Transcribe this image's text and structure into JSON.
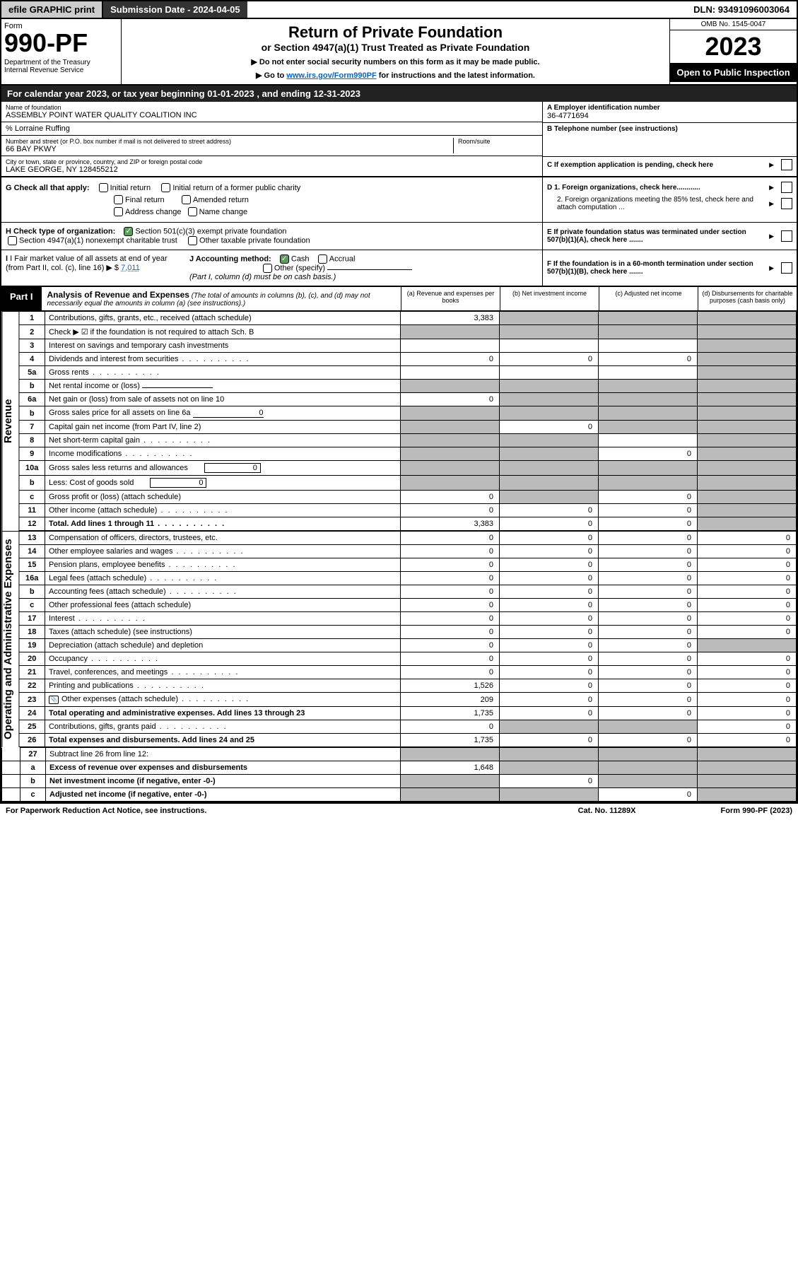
{
  "topbar": {
    "efile": "efile GRAPHIC print",
    "subdate_lbl": "Submission Date - 2024-04-05",
    "dln": "DLN: 93491096003064"
  },
  "header": {
    "form": "Form",
    "num": "990-PF",
    "dept": "Department of the Treasury\nInternal Revenue Service",
    "title": "Return of Private Foundation",
    "sub1": "or Section 4947(a)(1) Trust Treated as Private Foundation",
    "sub2a": "▶ Do not enter social security numbers on this form as it may be made public.",
    "sub2b": "▶ Go to ",
    "link": "www.irs.gov/Form990PF",
    "sub2c": " for instructions and the latest information.",
    "omb": "OMB No. 1545-0047",
    "year": "2023",
    "open": "Open to Public Inspection"
  },
  "calyear": "For calendar year 2023, or tax year beginning 01-01-2023                          , and ending 12-31-2023",
  "info": {
    "name_lbl": "Name of foundation",
    "name": "ASSEMBLY POINT WATER QUALITY COALITION INC",
    "co": "% Lorraine Ruffing",
    "addr_lbl": "Number and street (or P.O. box number if mail is not delivered to street address)",
    "room_lbl": "Room/suite",
    "addr": "66 BAY PKWY",
    "city_lbl": "City or town, state or province, country, and ZIP or foreign postal code",
    "city": "LAKE GEORGE, NY  128455212",
    "a_lbl": "A Employer identification number",
    "a": "36-4771694",
    "b_lbl": "B Telephone number (see instructions)",
    "b": "",
    "c_lbl": "C If exemption application is pending, check here",
    "d1": "D 1. Foreign organizations, check here............",
    "d2": "2. Foreign organizations meeting the 85% test, check here and attach computation ...",
    "e": "E  If private foundation status was terminated under section 507(b)(1)(A), check here .......",
    "f": "F  If the foundation is in a 60-month termination under section 507(b)(1)(B), check here ......."
  },
  "g": {
    "lbl": "G Check all that apply:",
    "o1": "Initial return",
    "o2": "Final return",
    "o3": "Address change",
    "o4": "Initial return of a former public charity",
    "o5": "Amended return",
    "o6": "Name change"
  },
  "h": {
    "lbl": "H Check type of organization:",
    "o1": "Section 501(c)(3) exempt private foundation",
    "o2": "Section 4947(a)(1) nonexempt charitable trust",
    "o3": "Other taxable private foundation"
  },
  "i": {
    "lbl": "I Fair market value of all assets at end of year (from Part II, col. (c), line 16) ▶ $",
    "val": "7,011"
  },
  "j": {
    "lbl": "J Accounting method:",
    "o1": "Cash",
    "o2": "Accrual",
    "o3": "Other (specify)",
    "note": "(Part I, column (d) must be on cash basis.)"
  },
  "part1": {
    "tag": "Part I",
    "title": "Analysis of Revenue and Expenses",
    "note": "(The total of amounts in columns (b), (c), and (d) may not necessarily equal the amounts in column (a) (see instructions).)",
    "ca": "(a)    Revenue and expenses per books",
    "cb": "(b)    Net investment income",
    "cc": "(c)   Adjusted net income",
    "cd": "(d)   Disbursements for charitable purposes (cash basis only)"
  },
  "rev_label": "Revenue",
  "exp_label": "Operating and Administrative Expenses",
  "rows": [
    {
      "n": "1",
      "t": "Contributions, gifts, grants, etc., received (attach schedule)",
      "a": "3,383",
      "bgrey": 1,
      "cgrey": 1,
      "dgrey": 1
    },
    {
      "n": "2",
      "t": "Check ▶  ☑  if the foundation is not required to attach Sch. B",
      "a": "",
      "bgrey": 1,
      "cgrey": 1,
      "dgrey": 1,
      "agrey": 1,
      "bold_not": 1
    },
    {
      "n": "3",
      "t": "Interest on savings and temporary cash investments",
      "a": "",
      "b": "",
      "c": "",
      "dgrey": 1
    },
    {
      "n": "4",
      "t": "Dividends and interest from securities",
      "a": "0",
      "b": "0",
      "c": "0",
      "dgrey": 1
    },
    {
      "n": "5a",
      "t": "Gross rents",
      "a": "",
      "b": "",
      "c": "",
      "dgrey": 1
    },
    {
      "n": "b",
      "t": "Net rental income or (loss)",
      "underline": 1,
      "agrey": 1,
      "bgrey": 1,
      "cgrey": 1,
      "dgrey": 1
    },
    {
      "n": "6a",
      "t": "Net gain or (loss) from sale of assets not on line 10",
      "a": "0",
      "bgrey": 1,
      "cgrey": 1,
      "dgrey": 1
    },
    {
      "n": "b",
      "t": "Gross sales price for all assets on line 6a",
      "underline": 1,
      "uval": "0",
      "agrey": 1,
      "bgrey": 1,
      "cgrey": 1,
      "dgrey": 1
    },
    {
      "n": "7",
      "t": "Capital gain net income (from Part IV, line 2)",
      "agrey": 1,
      "b": "0",
      "cgrey": 1,
      "dgrey": 1
    },
    {
      "n": "8",
      "t": "Net short-term capital gain",
      "agrey": 1,
      "bgrey": 1,
      "c": "",
      "dgrey": 1
    },
    {
      "n": "9",
      "t": "Income modifications",
      "agrey": 1,
      "bgrey": 1,
      "c": "0",
      "dgrey": 1
    },
    {
      "n": "10a",
      "t": "Gross sales less returns and allowances",
      "box": 1,
      "bval": "0",
      "agrey": 1,
      "bgrey": 1,
      "cgrey": 1,
      "dgrey": 1
    },
    {
      "n": "b",
      "t": "Less: Cost of goods sold",
      "box": 1,
      "bval": "0",
      "agrey": 1,
      "bgrey": 1,
      "cgrey": 1,
      "dgrey": 1
    },
    {
      "n": "c",
      "t": "Gross profit or (loss) (attach schedule)",
      "a": "0",
      "bgrey": 1,
      "c": "0",
      "dgrey": 1
    },
    {
      "n": "11",
      "t": "Other income (attach schedule)",
      "a": "0",
      "b": "0",
      "c": "0",
      "dgrey": 1
    },
    {
      "n": "12",
      "t": "Total. Add lines 1 through 11",
      "a": "3,383",
      "b": "0",
      "c": "0",
      "dgrey": 1,
      "bold": 1
    }
  ],
  "exp_rows": [
    {
      "n": "13",
      "t": "Compensation of officers, directors, trustees, etc.",
      "a": "0",
      "b": "0",
      "c": "0",
      "d": "0"
    },
    {
      "n": "14",
      "t": "Other employee salaries and wages",
      "a": "0",
      "b": "0",
      "c": "0",
      "d": "0"
    },
    {
      "n": "15",
      "t": "Pension plans, employee benefits",
      "a": "0",
      "b": "0",
      "c": "0",
      "d": "0"
    },
    {
      "n": "16a",
      "t": "Legal fees (attach schedule)",
      "a": "0",
      "b": "0",
      "c": "0",
      "d": "0"
    },
    {
      "n": "b",
      "t": "Accounting fees (attach schedule)",
      "a": "0",
      "b": "0",
      "c": "0",
      "d": "0"
    },
    {
      "n": "c",
      "t": "Other professional fees (attach schedule)",
      "a": "0",
      "b": "0",
      "c": "0",
      "d": "0"
    },
    {
      "n": "17",
      "t": "Interest",
      "a": "0",
      "b": "0",
      "c": "0",
      "d": "0"
    },
    {
      "n": "18",
      "t": "Taxes (attach schedule) (see instructions)",
      "a": "0",
      "b": "0",
      "c": "0",
      "d": "0"
    },
    {
      "n": "19",
      "t": "Depreciation (attach schedule) and depletion",
      "a": "0",
      "b": "0",
      "c": "0",
      "dgrey": 1
    },
    {
      "n": "20",
      "t": "Occupancy",
      "a": "0",
      "b": "0",
      "c": "0",
      "d": "0"
    },
    {
      "n": "21",
      "t": "Travel, conferences, and meetings",
      "a": "0",
      "b": "0",
      "c": "0",
      "d": "0"
    },
    {
      "n": "22",
      "t": "Printing and publications",
      "a": "1,526",
      "b": "0",
      "c": "0",
      "d": "0"
    },
    {
      "n": "23",
      "t": "Other expenses (attach schedule)",
      "icon": 1,
      "a": "209",
      "b": "0",
      "c": "0",
      "d": "0"
    },
    {
      "n": "24",
      "t": "Total operating and administrative expenses. Add lines 13 through 23",
      "a": "1,735",
      "b": "0",
      "c": "0",
      "d": "0",
      "bold": 1
    },
    {
      "n": "25",
      "t": "Contributions, gifts, grants paid",
      "a": "0",
      "bgrey": 1,
      "cgrey": 1,
      "d": "0"
    },
    {
      "n": "26",
      "t": "Total expenses and disbursements. Add lines 24 and 25",
      "a": "1,735",
      "b": "0",
      "c": "0",
      "d": "0",
      "bold": 1
    }
  ],
  "sub_rows": [
    {
      "n": "27",
      "t": "Subtract line 26 from line 12:",
      "agrey": 1,
      "bgrey": 1,
      "cgrey": 1,
      "dgrey": 1
    },
    {
      "n": "a",
      "t": "Excess of revenue over expenses and disbursements",
      "a": "1,648",
      "bgrey": 1,
      "cgrey": 1,
      "dgrey": 1,
      "bold": 1
    },
    {
      "n": "b",
      "t": "Net investment income (if negative, enter -0-)",
      "agrey": 1,
      "b": "0",
      "cgrey": 1,
      "dgrey": 1,
      "bold": 1
    },
    {
      "n": "c",
      "t": "Adjusted net income (if negative, enter -0-)",
      "agrey": 1,
      "bgrey": 1,
      "c": "0",
      "dgrey": 1,
      "bold": 1
    }
  ],
  "footer": {
    "l": "For Paperwork Reduction Act Notice, see instructions.",
    "m": "Cat. No. 11289X",
    "r": "Form 990-PF (2023)"
  }
}
